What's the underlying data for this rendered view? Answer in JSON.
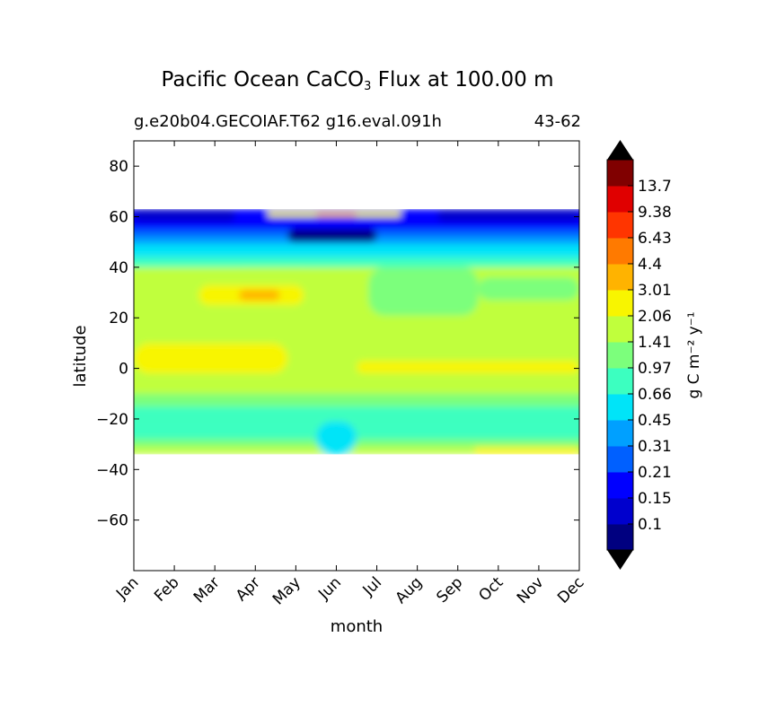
{
  "chart_data": {
    "type": "heatmap",
    "plot": "filled contour",
    "title": {
      "prefix": "Pacific Ocean CaCO",
      "sub": "3",
      "suffix": " Flux at 100.00 m"
    },
    "subtitle_left": "g.e20b04.GECOIAF.T62 g16.eval.091h",
    "subtitle_right": "43-62",
    "xlabel": "month",
    "ylabel": "latitude",
    "x_categories": [
      "Jan",
      "Feb",
      "Mar",
      "Apr",
      "May",
      "Jun",
      "Jul",
      "Aug",
      "Sep",
      "Oct",
      "Nov",
      "Dec"
    ],
    "ylim": [
      -80,
      90
    ],
    "y_ticks": [
      {
        "v": 80,
        "label": "80"
      },
      {
        "v": 60,
        "label": "60"
      },
      {
        "v": 40,
        "label": "40"
      },
      {
        "v": 20,
        "label": "20"
      },
      {
        "v": 0,
        "label": "0"
      },
      {
        "v": -20,
        "label": "−20"
      },
      {
        "v": -40,
        "label": "−40"
      },
      {
        "v": -60,
        "label": "−60"
      }
    ],
    "data_lat_range": [
      -34,
      63
    ],
    "colorbar": {
      "label": "g C m⁻² y⁻¹",
      "extend": "both",
      "levels": [
        0.1,
        0.15,
        0.21,
        0.31,
        0.45,
        0.66,
        0.97,
        1.41,
        2.06,
        3.01,
        4.4,
        6.43,
        9.38,
        13.7
      ],
      "level_labels": [
        "0.1",
        "0.15",
        "0.21",
        "0.31",
        "0.45",
        "0.66",
        "0.97",
        "1.41",
        "2.06",
        "3.01",
        "4.4",
        "6.43",
        "9.38",
        "13.7"
      ],
      "colors": [
        "#000080",
        "#0000cd",
        "#0000ff",
        "#0060ff",
        "#00a0ff",
        "#00e4f8",
        "#3cffc0",
        "#7cff7c",
        "#c0ff3c",
        "#f8f500",
        "#ffb300",
        "#ff7a00",
        "#ff3500",
        "#e00000",
        "#800000"
      ],
      "under_color": "#000000",
      "over_color": "#000000"
    },
    "bands": [
      {
        "level": 7,
        "months": [
          0,
          11
        ],
        "lat": [
          -34,
          63
        ]
      },
      {
        "level": 8,
        "months": [
          0,
          11
        ],
        "lat": [
          -34,
          40
        ]
      },
      {
        "level": 6,
        "months": [
          0,
          11
        ],
        "lat": [
          -31,
          -20
        ]
      },
      {
        "level": 7,
        "months": [
          0,
          11
        ],
        "lat": [
          -31,
          -28
        ]
      },
      {
        "level": 5,
        "months": [
          4.5,
          5.5
        ],
        "lat": [
          -34,
          -21
        ]
      },
      {
        "level": 6,
        "months": [
          0,
          11
        ],
        "lat": [
          -20,
          -15
        ]
      },
      {
        "level": 7,
        "months": [
          0,
          11
        ],
        "lat": [
          -15,
          -10
        ]
      },
      {
        "level": 9,
        "months": [
          0,
          3.8
        ],
        "lat": [
          -2,
          10
        ]
      },
      {
        "level": 9,
        "months": [
          5.5,
          11
        ],
        "lat": [
          -2,
          3
        ]
      },
      {
        "level": 9,
        "months": [
          1.6,
          4.2
        ],
        "lat": [
          25,
          33
        ]
      },
      {
        "level": 10,
        "months": [
          2.6,
          3.6
        ],
        "lat": [
          27,
          31
        ]
      },
      {
        "level": 9,
        "months": [
          2.6,
          4.3
        ],
        "lat": [
          40,
          43
        ]
      },
      {
        "level": 9,
        "months": [
          8.4,
          11
        ],
        "lat": [
          -34,
          -31
        ]
      },
      {
        "level": 7,
        "months": [
          5.8,
          8.5
        ],
        "lat": [
          21,
          40
        ]
      },
      {
        "level": 7,
        "months": [
          8.5,
          11
        ],
        "lat": [
          27,
          36
        ]
      },
      {
        "level": 6,
        "months": [
          0,
          11
        ],
        "lat": [
          40,
          49
        ]
      },
      {
        "level": 5,
        "months": [
          0,
          11
        ],
        "lat": [
          44,
          54
        ]
      },
      {
        "level": 4,
        "months": [
          0,
          11
        ],
        "lat": [
          49,
          57
        ]
      },
      {
        "level": 3,
        "months": [
          0,
          11
        ],
        "lat": [
          52,
          60
        ]
      },
      {
        "level": 2,
        "months": [
          0,
          11
        ],
        "lat": [
          55,
          63
        ]
      },
      {
        "level": 1,
        "months": [
          0,
          2.5
        ],
        "lat": [
          58,
          63
        ]
      },
      {
        "level": 1,
        "months": [
          7.5,
          11
        ],
        "lat": [
          58,
          63
        ]
      },
      {
        "level": 0,
        "months": [
          3.8,
          6
        ],
        "lat": [
          50,
          55
        ]
      },
      {
        "level": 9,
        "months": [
          3.3,
          6.6
        ],
        "lat": [
          60,
          62
        ]
      },
      {
        "level": 10,
        "months": [
          4.5,
          5.5
        ],
        "lat": [
          60,
          61.5
        ]
      }
    ]
  }
}
